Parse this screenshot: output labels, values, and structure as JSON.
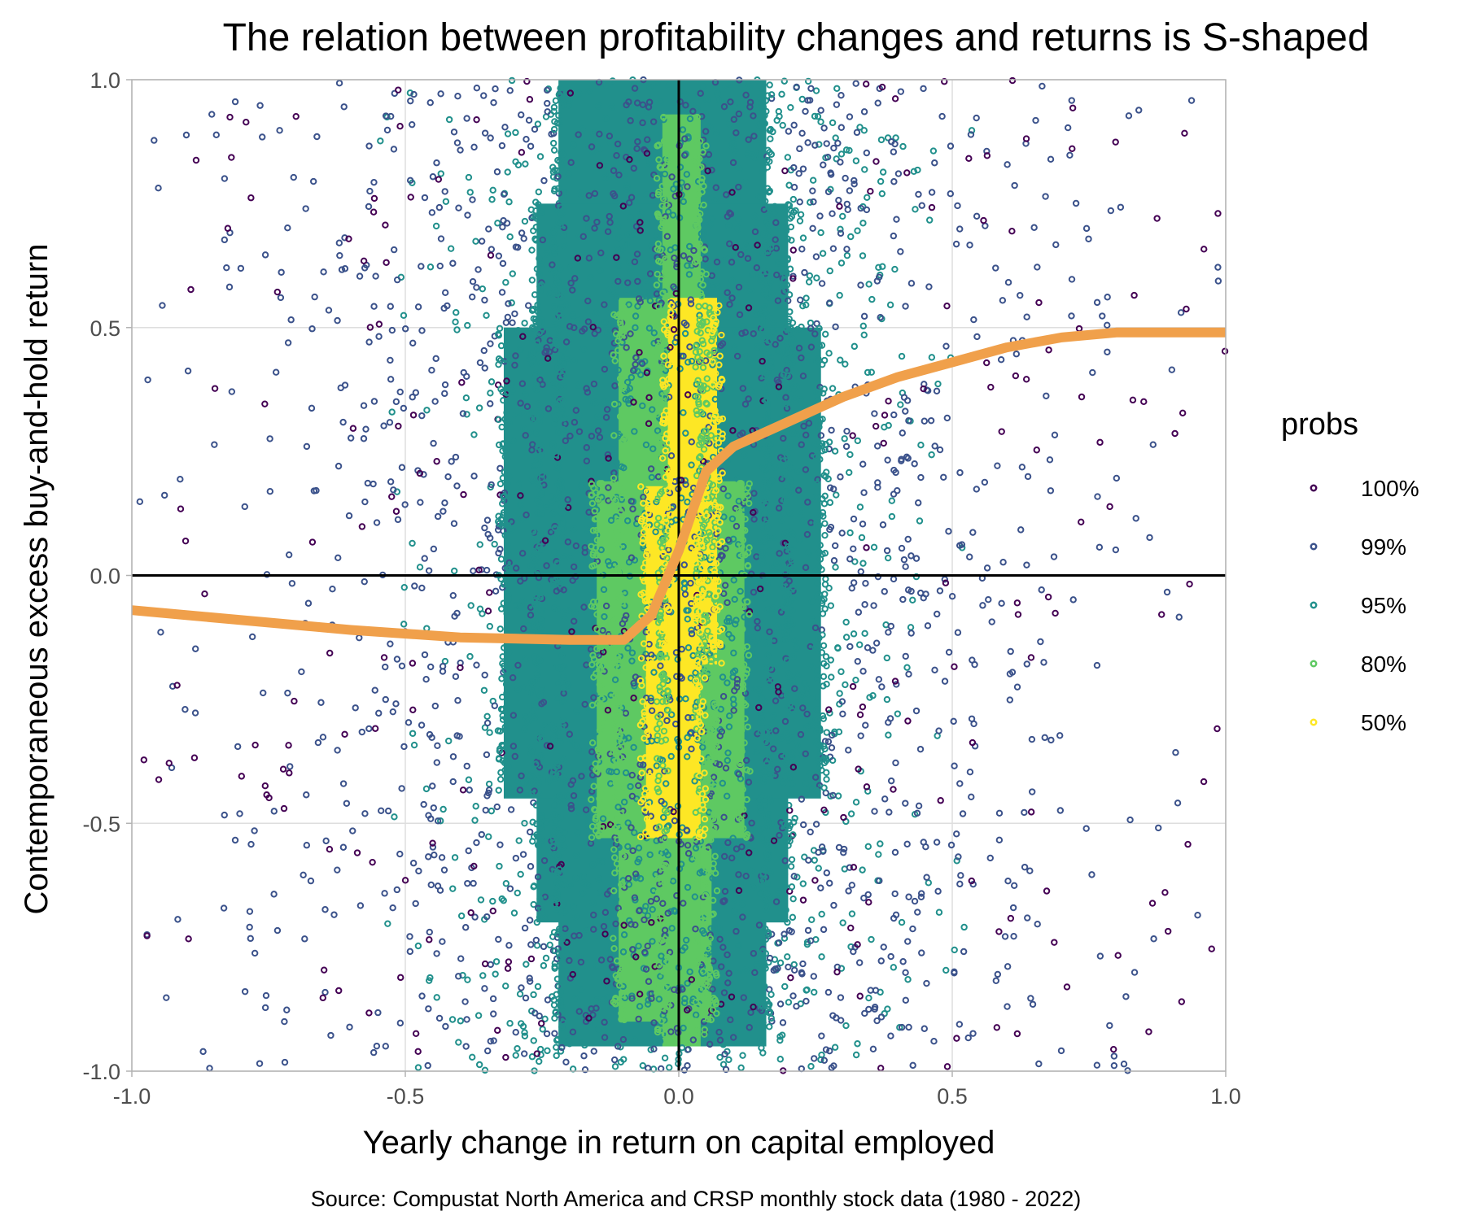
{
  "chart_data": {
    "type": "scatter",
    "title": "The relation between profitability changes and returns is S-shaped",
    "xlabel": "Yearly change in return on capital employed",
    "ylabel": "Contemporaneous excess buy-and-hold return",
    "caption": "Source: Compustat North America and CRSP monthly stock data (1980 - 2022)",
    "xlim": [
      -1.0,
      1.0
    ],
    "ylim": [
      -1.0,
      1.0
    ],
    "x_ticks": [
      -1.0,
      -0.5,
      0.0,
      0.5,
      1.0
    ],
    "y_ticks": [
      -1.0,
      -0.5,
      0.0,
      0.5,
      1.0
    ],
    "x_tick_labels": [
      "-1.0",
      "-0.5",
      "0.0",
      "0.5",
      "1.0"
    ],
    "y_tick_labels": [
      "-1.0",
      "-0.5",
      "0.0",
      "0.5",
      "1.0"
    ],
    "grid": true,
    "reference_lines": {
      "x": 0,
      "y": 0,
      "color": "#000000"
    },
    "legend": {
      "title": "probs",
      "placement": "right",
      "entries": [
        {
          "label": "100%",
          "color": "#440154"
        },
        {
          "label": "99%",
          "color": "#3b528b"
        },
        {
          "label": "95%",
          "color": "#21908c"
        },
        {
          "label": "80%",
          "color": "#5ec962"
        },
        {
          "label": "50%",
          "color": "#fde725"
        }
      ]
    },
    "density_regions": [
      {
        "prob": "95%",
        "color": "#21908c",
        "bands": [
          {
            "x": [
              -0.22,
              0.16
            ],
            "y": [
              -0.95,
              1.0
            ]
          },
          {
            "x": [
              -0.26,
              0.2
            ],
            "y": [
              -0.7,
              0.75
            ]
          },
          {
            "x": [
              -0.32,
              0.26
            ],
            "y": [
              -0.45,
              0.5
            ]
          }
        ]
      },
      {
        "prob": "80%",
        "color": "#5ec962",
        "bands": [
          {
            "x": [
              -0.15,
              0.12
            ],
            "y": [
              -0.53,
              0.19
            ]
          },
          {
            "x": [
              -0.11,
              0.06
            ],
            "y": [
              -0.9,
              0.56
            ]
          },
          {
            "x": [
              -0.03,
              0.04
            ],
            "y": [
              -0.95,
              0.93
            ]
          }
        ]
      },
      {
        "prob": "50%",
        "color": "#fde725",
        "bands": [
          {
            "x": [
              -0.06,
              0.04
            ],
            "y": [
              -0.53,
              0.18
            ]
          },
          {
            "x": [
              -0.02,
              0.07
            ],
            "y": [
              -0.18,
              0.56
            ]
          }
        ]
      }
    ],
    "scatter_clouds": [
      {
        "prob": "95%",
        "color": "#21908c",
        "count": 1500,
        "x_sd": 0.22,
        "x_max": 0.55,
        "y_range": [
          -1.0,
          1.0
        ]
      },
      {
        "prob": "99%",
        "color": "#3b528b",
        "count": 1700,
        "x_sd": 0.42,
        "x_max": 1.0,
        "y_range": [
          -1.0,
          1.0
        ]
      },
      {
        "prob": "100%",
        "color": "#440154",
        "count": 300,
        "x_sd": 0.8,
        "x_max": 1.0,
        "y_range": [
          -1.0,
          1.0
        ]
      }
    ],
    "series": [
      {
        "name": "",
        "type": "line",
        "color": "#f0a04b",
        "x": [
          -1.0,
          -0.8,
          -0.6,
          -0.4,
          -0.2,
          -0.1,
          -0.05,
          0.0,
          0.05,
          0.1,
          0.2,
          0.3,
          0.4,
          0.5,
          0.6,
          0.7,
          0.8,
          0.9,
          1.0
        ],
        "y": [
          -0.07,
          -0.09,
          -0.11,
          -0.125,
          -0.13,
          -0.13,
          -0.08,
          0.05,
          0.21,
          0.26,
          0.31,
          0.36,
          0.4,
          0.43,
          0.46,
          0.48,
          0.49,
          0.49,
          0.49
        ]
      }
    ]
  }
}
